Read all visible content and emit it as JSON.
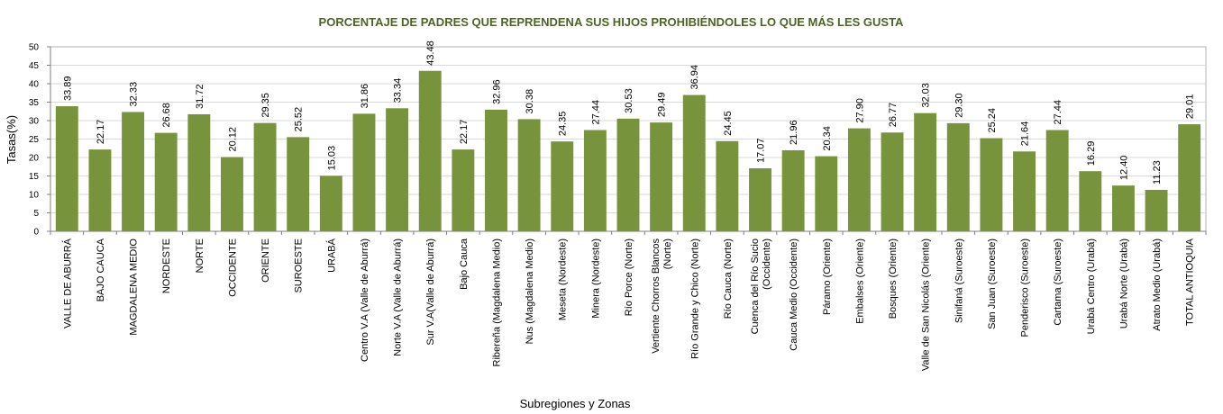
{
  "chart_data": {
    "type": "bar",
    "title": "PORCENTAJE DE PADRES QUE REPRENDENA SUS HIJOS PROHIBIÉNDOLES LO QUE MÁS LES GUSTA",
    "xlabel": "Subregiones y Zonas",
    "ylabel": "Tasas(%)",
    "ylim": [
      0,
      50
    ],
    "yticks": [
      "0",
      "5",
      "10",
      "15",
      "20",
      "25",
      "30",
      "35",
      "40",
      "45",
      "50"
    ],
    "grid": true,
    "bar_color": "#77933c",
    "title_color": "#4f6228",
    "categories": [
      [
        "VALLE DE ABURRÁ"
      ],
      [
        "BAJO CAUCA"
      ],
      [
        "MAGDALENA MEDIO"
      ],
      [
        "NORDESTE"
      ],
      [
        "NORTE"
      ],
      [
        "OCCIDENTE"
      ],
      [
        "ORIENTE"
      ],
      [
        "SUROESTE"
      ],
      [
        "URABÁ"
      ],
      [
        "Centro V.A (Valle de Aburrá)"
      ],
      [
        "Norte V.A (Valle de Aburrá)"
      ],
      [
        "Sur V.A(Valle de Aburrá)"
      ],
      [
        "Bajo Cauca"
      ],
      [
        "Ribereña  (Magdalena Medio)"
      ],
      [
        "Nus  (Magdalena Medio)"
      ],
      [
        "Meseta  (Nordeste)"
      ],
      [
        "Minera  (Nordeste)"
      ],
      [
        "Río Porce   (Norte)"
      ],
      [
        "Vertiente Chorros Blancos",
        "(Norte)"
      ],
      [
        "Río Grande y Chico  (Norte)"
      ],
      [
        "Río Cauca  (Norte)"
      ],
      [
        "Cuenca del Río Sucio",
        "(Occidente)"
      ],
      [
        "Cauca Medio  (Occidente)"
      ],
      [
        "Páramo  (Oriente)"
      ],
      [
        "Embalses  (Oriente)"
      ],
      [
        "Bosques  (Oriente)"
      ],
      [
        "Valle de San Nicolás  (Oriente)"
      ],
      [
        "Sinifaná  (Suroeste)"
      ],
      [
        "San Juan  (Suroeste)"
      ],
      [
        "Penderisco  (Suroeste)"
      ],
      [
        "Cartama  (Suroeste)"
      ],
      [
        "Urabá Centro  (Urabá)"
      ],
      [
        "Urabá Norte  (Urabá)"
      ],
      [
        "Atrato Medio  (Urabá)"
      ],
      [
        "TOTAL ANTIOQUIA"
      ]
    ],
    "values": [
      33.89,
      22.17,
      32.33,
      26.68,
      31.72,
      20.12,
      29.35,
      25.52,
      15.03,
      31.86,
      33.34,
      43.48,
      22.17,
      32.96,
      30.38,
      24.35,
      27.44,
      30.53,
      29.49,
      36.94,
      24.45,
      17.07,
      21.96,
      20.34,
      27.9,
      26.77,
      32.03,
      29.3,
      25.24,
      21.64,
      27.44,
      16.29,
      12.4,
      11.23,
      29.01
    ],
    "labels": [
      "33.89",
      "22.17",
      "32.33",
      "26.68",
      "31.72",
      "20.12",
      "29.35",
      "25.52",
      "15.03",
      "31.86",
      "33.34",
      "43.48",
      "22.17",
      "32.96",
      "30.38",
      "24.35",
      "27.44",
      "30.53",
      "29.49",
      "36.94",
      "24.45",
      "17.07",
      "21.96",
      "20.34",
      "27.90",
      "26.77",
      "32.03",
      "29.30",
      "25.24",
      "21.64",
      "27.44",
      "16.29",
      "12.40",
      "11.23",
      "29.01"
    ]
  }
}
